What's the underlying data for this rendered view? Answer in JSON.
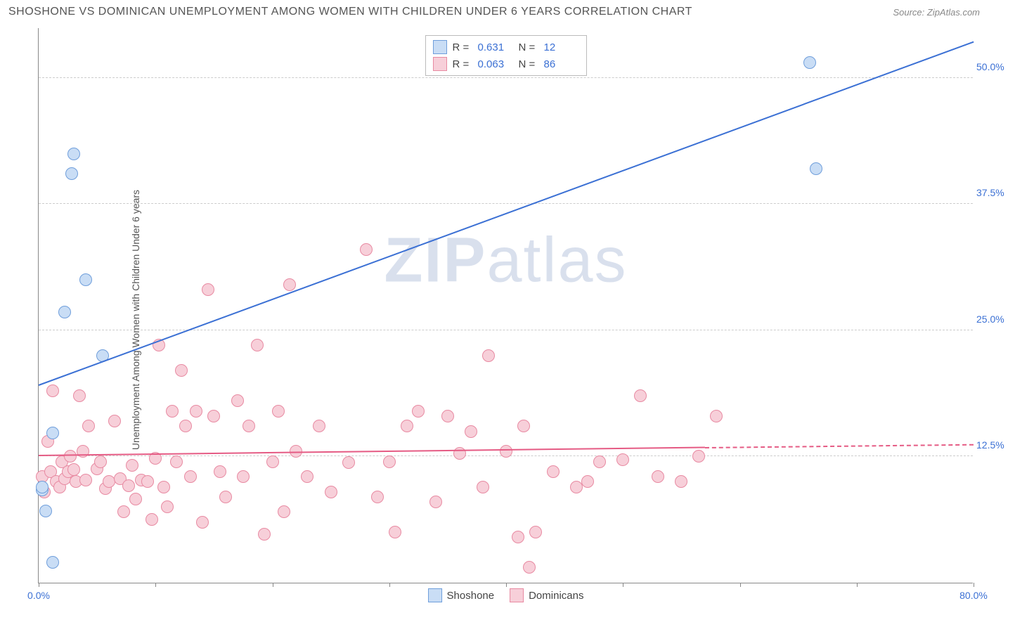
{
  "header": {
    "title": "SHOSHONE VS DOMINICAN UNEMPLOYMENT AMONG WOMEN WITH CHILDREN UNDER 6 YEARS CORRELATION CHART",
    "source": "Source: ZipAtlas.com"
  },
  "ylabel": "Unemployment Among Women with Children Under 6 years",
  "watermark": {
    "part1": "ZIP",
    "part2": "atlas"
  },
  "axes": {
    "xlim": [
      0,
      80
    ],
    "ylim": [
      0,
      55
    ],
    "xticks": [
      0,
      10,
      20,
      30,
      40,
      50,
      60,
      70,
      80
    ],
    "xtick_labels": {
      "0": "0.0%",
      "80": "80.0%"
    },
    "yticks": [
      12.5,
      25.0,
      37.5,
      50.0
    ],
    "ytick_labels": [
      "12.5%",
      "25.0%",
      "37.5%",
      "50.0%"
    ],
    "grid_color": "#cccccc",
    "axis_color": "#888888",
    "tick_label_color": "#3b70d4"
  },
  "series": {
    "shoshone": {
      "label": "Shoshone",
      "fill": "#c9ddf5",
      "stroke": "#6f9edb",
      "line_color": "#3b70d4",
      "r_value": "0.631",
      "n_value": "12",
      "marker_radius": 9,
      "trend": {
        "x1": 0,
        "y1": 19.5,
        "x2": 80,
        "y2": 53.5
      },
      "points": [
        [
          0.3,
          9.2
        ],
        [
          0.3,
          9.5
        ],
        [
          0.6,
          7.1
        ],
        [
          1.2,
          2.0
        ],
        [
          1.2,
          14.8
        ],
        [
          2.2,
          26.8
        ],
        [
          2.8,
          40.5
        ],
        [
          3.0,
          42.5
        ],
        [
          4.0,
          30.0
        ],
        [
          5.5,
          22.5
        ],
        [
          66.0,
          51.5
        ],
        [
          66.5,
          41.0
        ]
      ]
    },
    "dominicans": {
      "label": "Dominicans",
      "fill": "#f7cfd9",
      "stroke": "#e88aa2",
      "line_color": "#e55b84",
      "r_value": "0.063",
      "n_value": "86",
      "marker_radius": 9,
      "trend_solid": {
        "x1": 0,
        "y1": 12.5,
        "x2": 57,
        "y2": 13.3
      },
      "trend_dash": {
        "x1": 57,
        "y1": 13.3,
        "x2": 80,
        "y2": 13.6
      },
      "points": [
        [
          0.3,
          10.5
        ],
        [
          0.5,
          9.0
        ],
        [
          0.8,
          14.0
        ],
        [
          1.0,
          11.0
        ],
        [
          1.2,
          19.0
        ],
        [
          1.5,
          10.0
        ],
        [
          1.8,
          9.5
        ],
        [
          2.0,
          12.0
        ],
        [
          2.2,
          10.3
        ],
        [
          2.5,
          11.0
        ],
        [
          2.7,
          12.5
        ],
        [
          3.0,
          11.2
        ],
        [
          3.2,
          10.0
        ],
        [
          3.5,
          18.5
        ],
        [
          3.8,
          13.0
        ],
        [
          4.0,
          10.2
        ],
        [
          4.3,
          15.5
        ],
        [
          5.0,
          11.3
        ],
        [
          5.3,
          12.0
        ],
        [
          5.7,
          9.3
        ],
        [
          6.0,
          10.0
        ],
        [
          6.5,
          16.0
        ],
        [
          7.0,
          10.3
        ],
        [
          7.3,
          7.0
        ],
        [
          7.7,
          9.6
        ],
        [
          8.0,
          11.6
        ],
        [
          8.3,
          8.3
        ],
        [
          8.8,
          10.2
        ],
        [
          9.3,
          10.0
        ],
        [
          9.7,
          6.3
        ],
        [
          10.0,
          12.3
        ],
        [
          10.3,
          23.5
        ],
        [
          10.7,
          9.5
        ],
        [
          11.0,
          7.5
        ],
        [
          11.4,
          17.0
        ],
        [
          11.8,
          12.0
        ],
        [
          12.2,
          21.0
        ],
        [
          12.6,
          15.5
        ],
        [
          13.0,
          10.5
        ],
        [
          13.5,
          17.0
        ],
        [
          14.0,
          6.0
        ],
        [
          14.5,
          29.0
        ],
        [
          15.0,
          16.5
        ],
        [
          15.5,
          11.0
        ],
        [
          16.0,
          8.5
        ],
        [
          17.0,
          18.0
        ],
        [
          17.5,
          10.5
        ],
        [
          18.0,
          15.5
        ],
        [
          18.7,
          23.5
        ],
        [
          19.3,
          4.8
        ],
        [
          20.0,
          12.0
        ],
        [
          20.5,
          17.0
        ],
        [
          21.0,
          7.0
        ],
        [
          21.5,
          29.5
        ],
        [
          22.0,
          13.0
        ],
        [
          23.0,
          10.5
        ],
        [
          24.0,
          15.5
        ],
        [
          25.0,
          9.0
        ],
        [
          26.5,
          11.9
        ],
        [
          28.0,
          33.0
        ],
        [
          29.0,
          8.5
        ],
        [
          30.0,
          12.0
        ],
        [
          30.5,
          5.0
        ],
        [
          31.5,
          15.5
        ],
        [
          32.5,
          17.0
        ],
        [
          34.0,
          8.0
        ],
        [
          35.0,
          16.5
        ],
        [
          36.0,
          12.8
        ],
        [
          37.0,
          15.0
        ],
        [
          38.0,
          9.5
        ],
        [
          38.5,
          22.5
        ],
        [
          40.0,
          13.0
        ],
        [
          41.0,
          4.5
        ],
        [
          41.5,
          15.5
        ],
        [
          42.0,
          1.5
        ],
        [
          42.5,
          5.0
        ],
        [
          44.0,
          11.0
        ],
        [
          46.0,
          9.5
        ],
        [
          47.0,
          10.0
        ],
        [
          48.0,
          12.0
        ],
        [
          50.0,
          12.2
        ],
        [
          51.5,
          18.5
        ],
        [
          53.0,
          10.5
        ],
        [
          55.0,
          10.0
        ],
        [
          56.5,
          12.5
        ],
        [
          58.0,
          16.5
        ]
      ]
    }
  },
  "legend_top": {
    "r_label": "R  =",
    "n_label": "N  ="
  },
  "styling": {
    "background_color": "#ffffff",
    "title_color": "#555555",
    "title_fontsize": 16,
    "source_color": "#888888"
  }
}
